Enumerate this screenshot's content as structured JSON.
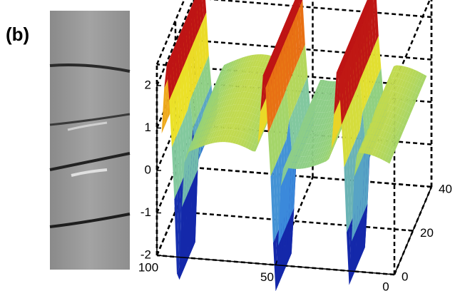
{
  "panel_label": "(b)",
  "chart_data": {
    "type": "surface",
    "xlim": [
      0,
      100
    ],
    "xticks": [
      100,
      50,
      0
    ],
    "ylim": [
      0,
      40
    ],
    "yticks": [
      0,
      20,
      40
    ],
    "zlim": [
      -2,
      2.5
    ],
    "zticks": [
      -2,
      -1,
      0,
      1,
      2
    ],
    "grid": true
  }
}
